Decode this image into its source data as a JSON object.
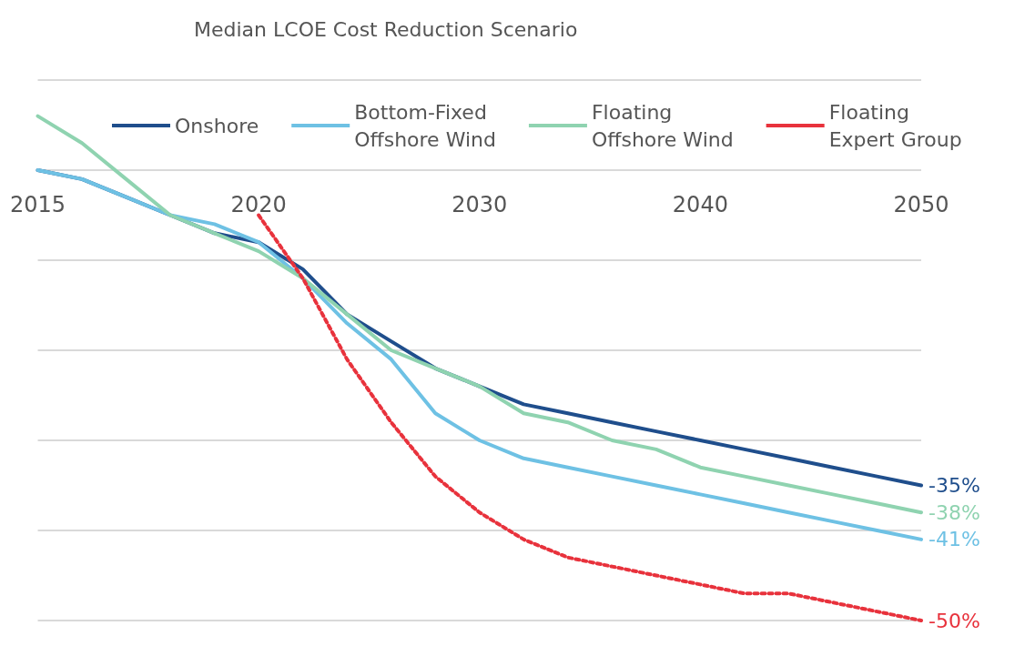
{
  "chart_data": {
    "type": "line",
    "title": "Median LCOE Cost Reduction Scenario",
    "grid": "y",
    "legend": "top",
    "marker": "none",
    "tick_labels": "x",
    "ylim": [
      -50,
      10
    ],
    "yticks": [
      {
        "value": -50,
        "label": null
      },
      {
        "value": -40,
        "label": null
      },
      {
        "value": -30,
        "label": null
      },
      {
        "value": -20,
        "label": null
      },
      {
        "value": -10,
        "label": null
      },
      {
        "value": 0,
        "label": null
      },
      {
        "value": 10,
        "label": null
      }
    ],
    "categories": [
      "2015",
      null,
      null,
      null,
      null,
      "2020",
      null,
      null,
      null,
      null,
      "2030",
      null,
      null,
      null,
      null,
      "2040",
      null,
      null,
      null,
      null,
      "2050"
    ],
    "series": [
      {
        "name": "Onshore",
        "color": "#1f4e8c",
        "line_style": "solid",
        "values": [
          0,
          -1,
          -3,
          -5,
          -7,
          -8,
          -11,
          -16,
          -19,
          -22,
          -24,
          -26,
          -27,
          -28,
          -29,
          -30,
          -31,
          -32,
          -33,
          -34,
          -35
        ],
        "value_labels": [
          null,
          null,
          null,
          null,
          null,
          null,
          null,
          null,
          null,
          null,
          null,
          null,
          null,
          null,
          null,
          null,
          null,
          null,
          null,
          null,
          "-35%"
        ]
      },
      {
        "name": "Bottom-Fixed\nOffshore Wind",
        "color": "#6ec1e4",
        "line_style": "solid",
        "values": [
          0,
          -1,
          -3,
          -5,
          -6,
          -8,
          -12,
          -17,
          -21,
          -27,
          -30,
          -32,
          -33,
          -34,
          -35,
          -36,
          -37,
          -38,
          -39,
          -40,
          -41
        ],
        "value_labels": [
          null,
          null,
          null,
          null,
          null,
          null,
          null,
          null,
          null,
          null,
          null,
          null,
          null,
          null,
          null,
          null,
          null,
          null,
          null,
          null,
          "-41%"
        ]
      },
      {
        "name": "Floating\nOffshore Wind",
        "color": "#8fd3b0",
        "line_style": "solid",
        "values": [
          6,
          3,
          -1,
          -5,
          -7,
          -9,
          -12,
          -16,
          -20,
          -22,
          -24,
          -27,
          -28,
          -30,
          -31,
          -33,
          -34,
          -35,
          -36,
          -37,
          -38
        ],
        "value_labels": [
          null,
          null,
          null,
          null,
          null,
          null,
          null,
          null,
          null,
          null,
          null,
          null,
          null,
          null,
          null,
          null,
          null,
          null,
          null,
          null,
          "-38%"
        ]
      },
      {
        "name": "Floating\nExpert Group",
        "color": "#e8323c",
        "line_style": "dotted",
        "values": [
          null,
          null,
          null,
          null,
          null,
          -5,
          -12,
          -21,
          -28,
          -34,
          -38,
          -41,
          -43,
          -44,
          -45,
          -46,
          -47,
          -47,
          -48,
          -49,
          -50
        ],
        "value_labels": [
          null,
          null,
          null,
          null,
          null,
          null,
          null,
          null,
          null,
          null,
          null,
          null,
          null,
          null,
          null,
          null,
          null,
          null,
          null,
          null,
          "-50%"
        ]
      }
    ]
  }
}
